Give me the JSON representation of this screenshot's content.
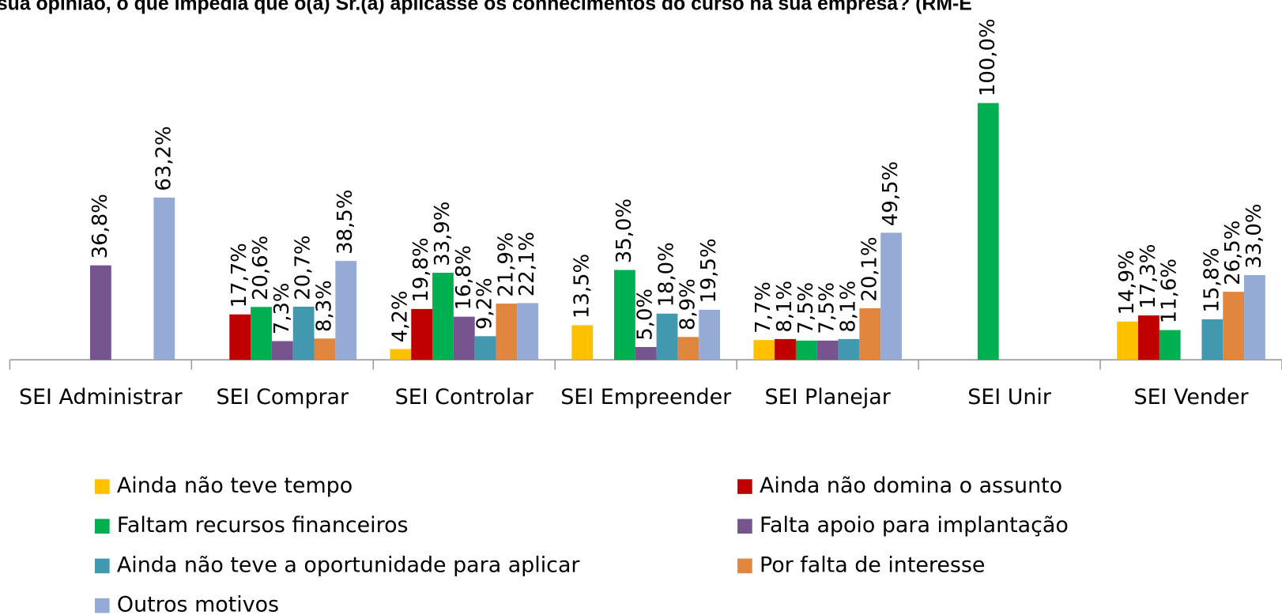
{
  "chart_data": {
    "type": "bar",
    "title": "sua opinião, o que  impedia que o(a) Sr.(a) aplicasse os conhecimentos do curso na sua empresa? (RM-E",
    "categories": [
      "SEI Administrar",
      "SEI Comprar",
      "SEI Controlar",
      "SEI Empreender",
      "SEI Planejar",
      "SEI Unir",
      "SEI Vender"
    ],
    "ylim": [
      0,
      100
    ],
    "series": [
      {
        "name": "Ainda não teve tempo",
        "color": "#FFC000",
        "values": [
          null,
          null,
          4.2,
          13.5,
          7.7,
          null,
          14.9
        ],
        "value_labels": [
          null,
          null,
          "4,2%",
          "13,5%",
          "7,7%",
          null,
          "14,9%"
        ]
      },
      {
        "name": "Ainda não domina o assunto",
        "color": "#C00000",
        "values": [
          null,
          17.7,
          19.8,
          null,
          8.1,
          null,
          17.3
        ],
        "value_labels": [
          null,
          "17,7%",
          "19,8%",
          null,
          "8,1%",
          null,
          "17,3%"
        ]
      },
      {
        "name": "Faltam recursos financeiros",
        "color": "#00B050",
        "values": [
          null,
          20.6,
          33.9,
          35.0,
          7.5,
          100.0,
          11.6
        ],
        "value_labels": [
          null,
          "20,6%",
          "33,9%",
          "35,0%",
          "7,5%",
          "100,0%",
          "11,6%"
        ]
      },
      {
        "name": "Falta apoio para implantação",
        "color": "#76558F",
        "values": [
          36.8,
          7.3,
          16.8,
          5.0,
          7.5,
          null,
          null
        ],
        "value_labels": [
          "36,8%",
          "7,3%",
          "16,8%",
          "5,0%",
          "7,5%",
          null,
          null
        ]
      },
      {
        "name": "Ainda não teve a oportunidade para aplicar",
        "color": "#4298AF",
        "values": [
          null,
          20.7,
          9.2,
          18.0,
          8.1,
          null,
          15.8
        ],
        "value_labels": [
          null,
          "20,7%",
          "9,2%",
          "18,0%",
          "8,1%",
          null,
          "15,8%"
        ]
      },
      {
        "name": "Por falta de interesse",
        "color": "#E0863E",
        "values": [
          null,
          8.3,
          21.9,
          8.9,
          20.1,
          null,
          26.5
        ],
        "value_labels": [
          null,
          "8,3%",
          "21,9%",
          "8,9%",
          "20,1%",
          null,
          "26,5%"
        ]
      },
      {
        "name": "Outros motivos",
        "color": "#95ABD5",
        "values": [
          63.2,
          38.5,
          22.1,
          19.5,
          49.5,
          null,
          33.0
        ],
        "value_labels": [
          "63,2%",
          "38,5%",
          "22,1%",
          "19,5%",
          "49,5%",
          null,
          "33,0%"
        ]
      }
    ]
  }
}
